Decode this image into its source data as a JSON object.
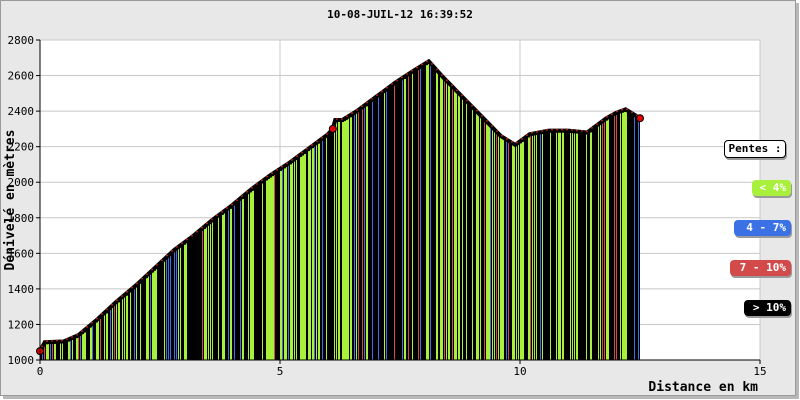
{
  "chart_data": {
    "type": "area",
    "title": "10-08-JUIL-12 16:39:52",
    "xlabel": "Distance en km",
    "ylabel": "Dénivelé en mètres",
    "xlim": [
      0,
      15
    ],
    "ylim": [
      1000,
      2800
    ],
    "x_ticks": [
      "0",
      "5",
      "10",
      "15"
    ],
    "y_ticks": [
      "1000",
      "1200",
      "1400",
      "1600",
      "1800",
      "2000",
      "2200",
      "2400",
      "2600",
      "2800"
    ],
    "grid": true,
    "legend_position": "right",
    "profile": {
      "x": [
        0,
        0.1,
        0.5,
        0.8,
        1.2,
        1.6,
        2.0,
        2.4,
        2.8,
        3.2,
        3.6,
        4.0,
        4.4,
        4.8,
        5.2,
        5.6,
        6.0,
        6.1,
        6.15,
        6.3,
        6.6,
        7.0,
        7.4,
        7.8,
        8.1,
        8.4,
        8.8,
        9.2,
        9.6,
        9.9,
        10.2,
        10.6,
        11.0,
        11.4,
        11.8,
        12.0,
        12.2,
        12.5
      ],
      "y": [
        1050,
        1100,
        1105,
        1140,
        1230,
        1330,
        1420,
        1520,
        1620,
        1700,
        1790,
        1870,
        1960,
        2040,
        2110,
        2190,
        2270,
        2300,
        2350,
        2350,
        2400,
        2480,
        2560,
        2630,
        2680,
        2590,
        2480,
        2370,
        2260,
        2210,
        2270,
        2290,
        2290,
        2280,
        2360,
        2390,
        2410,
        2360
      ]
    },
    "legend": {
      "title": "Pentes :",
      "entries": [
        {
          "label": "< 4%",
          "color": "#a8f03c",
          "text_color": "#ffffff"
        },
        {
          "label": "4 - 7%",
          "color": "#3a72e6",
          "text_color": "#ffffff"
        },
        {
          "label": "7 - 10%",
          "color": "#d24a4a",
          "text_color": "#ffffff"
        },
        {
          "label": "> 10%",
          "color": "#000000",
          "text_color": "#ffffff"
        }
      ]
    }
  }
}
